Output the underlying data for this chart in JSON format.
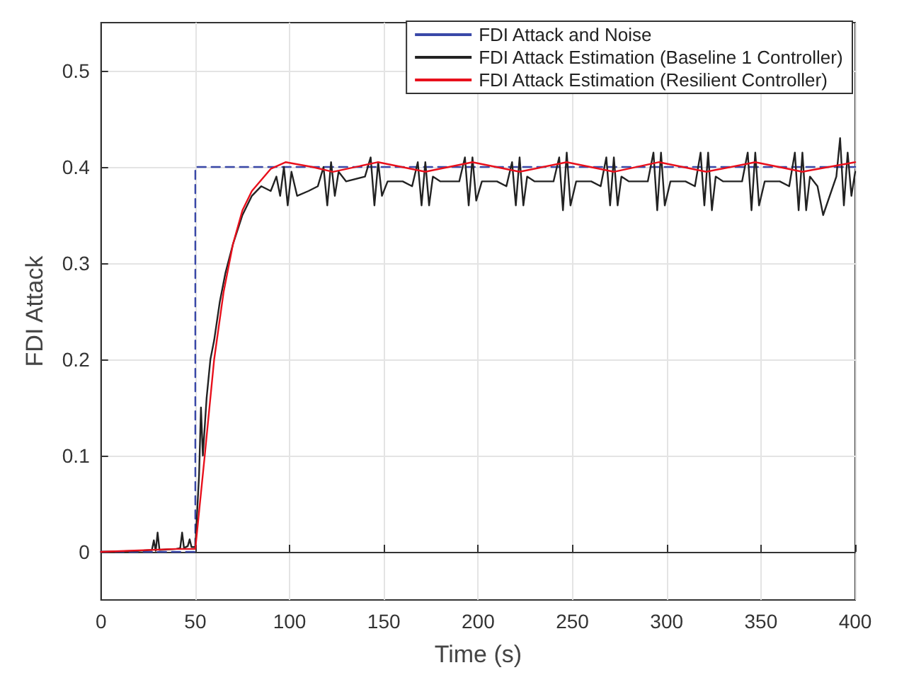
{
  "chart_data": {
    "type": "line",
    "xlabel": "Time (s)",
    "ylabel": "FDI Attack",
    "xlim": [
      0,
      400
    ],
    "xticks": [
      0,
      50,
      100,
      150,
      200,
      250,
      300,
      350,
      400
    ],
    "ylim": [
      -0.05,
      0.55
    ],
    "yticks": [
      0,
      0.1,
      0.2,
      0.3,
      0.4,
      0.5
    ],
    "grid": true,
    "legend": "top right",
    "series": [
      {
        "name": "FDI Attack and Noise",
        "color": "#3a48a8",
        "line_style": "dashed",
        "x": [
          0,
          50,
          50,
          400
        ],
        "values": [
          0,
          0,
          0.4,
          0.4
        ]
      },
      {
        "name": "FDI Attack Estimation (Baseline 1 Controller)",
        "color": "#222222",
        "line_style": "solid",
        "x": [
          0,
          20,
          27,
          28,
          29,
          30,
          31,
          40,
          42,
          43,
          44,
          46,
          47,
          48,
          50,
          52,
          53,
          54,
          56,
          58,
          60,
          63,
          66,
          70,
          75,
          80,
          85,
          90,
          93,
          95,
          97,
          99,
          101,
          104,
          110,
          115,
          118,
          120,
          122,
          124,
          126,
          130,
          140,
          143,
          145,
          147,
          149,
          152,
          160,
          165,
          168,
          170,
          172,
          174,
          176,
          180,
          190,
          193,
          195,
          197,
          199,
          202,
          210,
          215,
          218,
          220,
          222,
          224,
          226,
          230,
          240,
          243,
          245,
          247,
          249,
          252,
          260,
          265,
          268,
          270,
          272,
          274,
          276,
          280,
          290,
          293,
          295,
          297,
          299,
          302,
          310,
          315,
          318,
          320,
          322,
          324,
          326,
          330,
          340,
          343,
          345,
          347,
          349,
          352,
          360,
          365,
          368,
          370,
          372,
          374,
          376,
          380,
          383,
          390,
          392,
          394,
          396,
          398,
          400
        ],
        "values": [
          0,
          0.001,
          0.002,
          0.012,
          0.001,
          0.02,
          0.002,
          0.003,
          0.004,
          0.02,
          0.004,
          0.006,
          0.013,
          0.005,
          0.005,
          0.08,
          0.15,
          0.1,
          0.16,
          0.2,
          0.22,
          0.26,
          0.29,
          0.32,
          0.35,
          0.37,
          0.38,
          0.375,
          0.39,
          0.37,
          0.4,
          0.36,
          0.395,
          0.37,
          0.375,
          0.38,
          0.4,
          0.36,
          0.405,
          0.37,
          0.395,
          0.385,
          0.39,
          0.41,
          0.36,
          0.405,
          0.37,
          0.385,
          0.385,
          0.38,
          0.405,
          0.36,
          0.405,
          0.36,
          0.39,
          0.385,
          0.385,
          0.41,
          0.36,
          0.41,
          0.365,
          0.385,
          0.385,
          0.38,
          0.405,
          0.36,
          0.41,
          0.36,
          0.39,
          0.385,
          0.385,
          0.41,
          0.355,
          0.415,
          0.36,
          0.385,
          0.385,
          0.38,
          0.41,
          0.36,
          0.41,
          0.36,
          0.39,
          0.385,
          0.385,
          0.415,
          0.355,
          0.415,
          0.36,
          0.385,
          0.385,
          0.38,
          0.415,
          0.36,
          0.415,
          0.355,
          0.39,
          0.385,
          0.385,
          0.415,
          0.355,
          0.415,
          0.36,
          0.385,
          0.385,
          0.38,
          0.415,
          0.355,
          0.415,
          0.355,
          0.39,
          0.38,
          0.35,
          0.39,
          0.43,
          0.36,
          0.415,
          0.37,
          0.395
        ]
      },
      {
        "name": "FDI Attack Estimation (Resilient Controller)",
        "color": "#e8101c",
        "line_style": "solid",
        "x": [
          0,
          40,
          50,
          55,
          60,
          65,
          70,
          75,
          80,
          90,
          98,
          112,
          123,
          147,
          172,
          197,
          222,
          247,
          272,
          296,
          321,
          347,
          372,
          400
        ],
        "values": [
          0,
          0.003,
          0.003,
          0.1,
          0.2,
          0.27,
          0.32,
          0.355,
          0.375,
          0.398,
          0.405,
          0.4,
          0.395,
          0.405,
          0.395,
          0.405,
          0.395,
          0.405,
          0.395,
          0.405,
          0.395,
          0.405,
          0.395,
          0.405
        ]
      }
    ]
  }
}
